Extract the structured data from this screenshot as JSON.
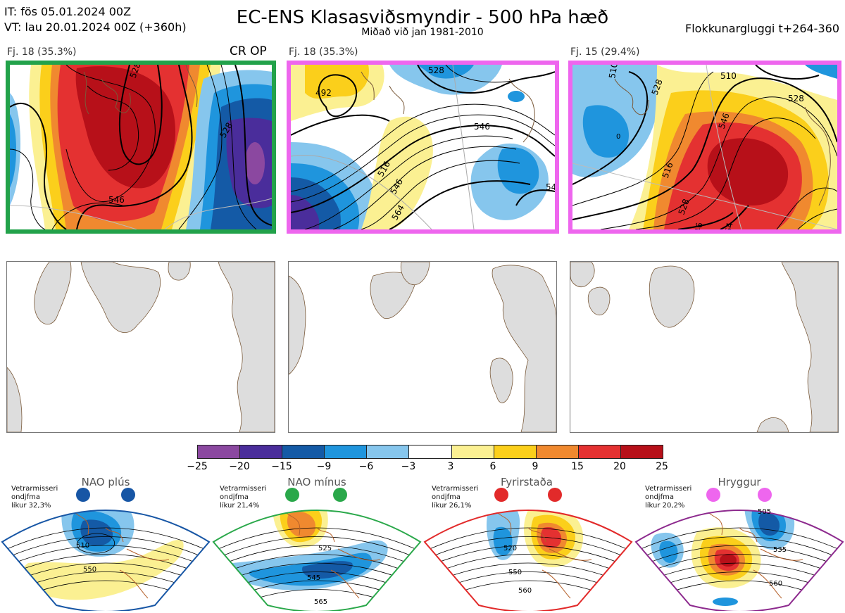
{
  "header": {
    "it_line": "IT: fös 05.01.2024 00Z",
    "vt_line": "VT: lau 20.01.2024 00Z  (+360h)",
    "title": "EC-ENS Klasasviðsmyndir - 500 hPa hæð",
    "subtitle": "Miðað við jan 1981-2010",
    "window": "Flokkunargluggi t+264-360"
  },
  "panels": [
    {
      "label": "Fj. 18 (35.3%)",
      "tag": "CR OP",
      "frame_color": "#22a24a",
      "contours": [
        "528",
        "546"
      ]
    },
    {
      "label": "Fj. 18 (35.3%)",
      "tag": "",
      "frame_color": "#ee66ee",
      "contours": [
        "492",
        "516",
        "528",
        "546",
        "564",
        "54"
      ]
    },
    {
      "label": "Fj. 15 (29.4%)",
      "tag": "",
      "frame_color": "#ee66ee",
      "contours": [
        "510",
        "528",
        "546",
        "0",
        "516",
        "46",
        "64"
      ]
    }
  ],
  "colorbar": {
    "colors": [
      "#8b48a0",
      "#4a2d9b",
      "#145aa6",
      "#1f95dd",
      "#86c6ed",
      "#ffffff",
      "#fbf092",
      "#fbcf1b",
      "#f0892f",
      "#e43131",
      "#b71019"
    ],
    "ticks": [
      "−25",
      "−20",
      "−15",
      "−9",
      "−6",
      "−3",
      "3",
      "6",
      "9",
      "15",
      "20",
      "25"
    ]
  },
  "clusters": [
    {
      "title": "NAO plús",
      "info": [
        "Vetrarmisseri",
        "ondjfma",
        "líkur 32,3%"
      ],
      "color": "#1756a5",
      "contours": [
        "510",
        "550"
      ]
    },
    {
      "title": "NAO mínus",
      "info": [
        "Vetrarmisseri",
        "ondjfma",
        "líkur 21,4%"
      ],
      "color": "#2aa84a",
      "contours": [
        "525",
        "545",
        "565"
      ]
    },
    {
      "title": "Fyrirstaða",
      "info": [
        "Vetrarmisseri",
        "ondjfma",
        "líkur 26,1%"
      ],
      "color": "#e22a2a",
      "contours": [
        "520",
        "550",
        "560"
      ]
    },
    {
      "title": "Hryggur",
      "info": [
        "Vetrarmisseri",
        "ondjfma",
        "líkur 20,2%"
      ],
      "color": "#8d2a8e",
      "contours": [
        "505",
        "535",
        "560"
      ]
    }
  ]
}
